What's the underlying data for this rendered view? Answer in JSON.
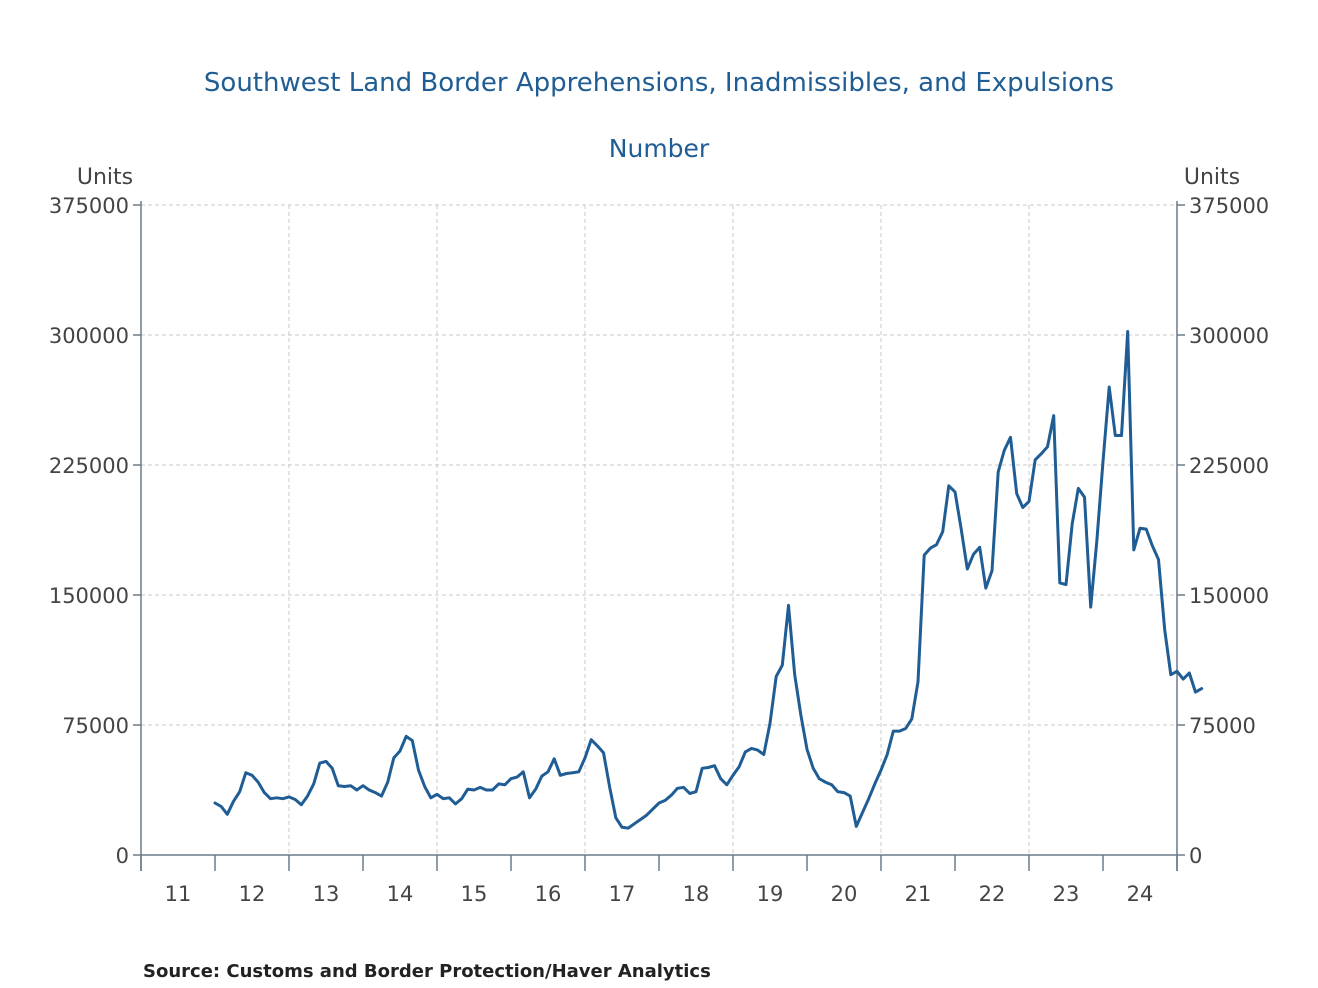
{
  "chart_data": {
    "type": "line",
    "title": "Southwest Land Border Apprehensions, Inadmissibles, and Expulsions",
    "subtitle": "Number",
    "left_axis_label": "Units",
    "right_axis_label": "Units",
    "source": "Source:  Customs and Border Protection/Haver Analytics",
    "ylim": [
      0,
      375000
    ],
    "y_ticks": [
      0,
      75000,
      150000,
      225000,
      300000,
      375000
    ],
    "y_tick_labels": [
      "0",
      "75000",
      "150000",
      "225000",
      "300000",
      "375000"
    ],
    "x_tick_labels": [
      "11",
      "12",
      "13",
      "14",
      "15",
      "16",
      "17",
      "18",
      "19",
      "20",
      "21",
      "22",
      "23",
      "24"
    ],
    "x_range": [
      "2010-10",
      "2024-10"
    ],
    "grid": true,
    "line_color": "#1f5d94",
    "series": [
      {
        "start": "2011-10",
        "values": [
          30000,
          28000,
          23500,
          31000,
          36500,
          47500,
          46000,
          42000,
          36000,
          32500,
          33000,
          32500,
          33500,
          32000,
          29000,
          34000,
          41000,
          53000,
          54000,
          50000,
          40000,
          39500,
          40000,
          37500,
          40000,
          37500,
          36000,
          34000,
          42000,
          56000,
          60000,
          68500,
          66000,
          49000,
          39500,
          33000,
          35000,
          32500,
          33000,
          29500,
          32500,
          38000,
          37500,
          39000,
          37500,
          37500,
          41000,
          40500,
          44000,
          45000,
          48000,
          33000,
          38000,
          45500,
          48000,
          55500,
          46000,
          47000,
          47500,
          48000,
          56000,
          66500,
          63000,
          59000,
          39000,
          21500,
          16000,
          15500,
          18000,
          20500,
          23000,
          26500,
          30000,
          31500,
          34500,
          38500,
          39000,
          35500,
          36500,
          50000,
          50500,
          51500,
          44000,
          40500,
          46000,
          51000,
          59500,
          61500,
          60500,
          58000,
          76000,
          103000,
          109500,
          144000,
          104000,
          81000,
          61000,
          50000,
          44000,
          42000,
          40500,
          36500,
          36000,
          34000,
          16500,
          24500,
          32500,
          41000,
          49000,
          58000,
          71500,
          71500,
          73000,
          78500,
          100000,
          173000,
          177000,
          179000,
          186500,
          213000,
          209500,
          188000,
          165000,
          173500,
          177500,
          154000,
          164000,
          221000,
          233500,
          241000,
          208500,
          200500,
          204000,
          228000,
          231500,
          235500,
          253500,
          157000,
          156000,
          191000,
          211500,
          206500,
          143000,
          181000,
          227000,
          270000,
          242000,
          242000,
          302000,
          176000,
          188500,
          188000,
          178500,
          170500,
          130000,
          104000,
          106000,
          101500,
          105000,
          94000,
          96000
        ]
      }
    ]
  }
}
